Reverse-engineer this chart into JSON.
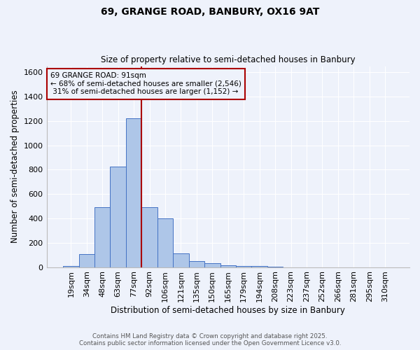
{
  "title_line1": "69, GRANGE ROAD, BANBURY, OX16 9AT",
  "title_line2": "Size of property relative to semi-detached houses in Banbury",
  "xlabel": "Distribution of semi-detached houses by size in Banbury",
  "ylabel": "Number of semi-detached properties",
  "categories": [
    "19sqm",
    "34sqm",
    "48sqm",
    "63sqm",
    "77sqm",
    "92sqm",
    "106sqm",
    "121sqm",
    "135sqm",
    "150sqm",
    "165sqm",
    "179sqm",
    "194sqm",
    "208sqm",
    "223sqm",
    "237sqm",
    "252sqm",
    "266sqm",
    "281sqm",
    "295sqm",
    "310sqm"
  ],
  "values": [
    10,
    105,
    490,
    825,
    1220,
    490,
    400,
    110,
    48,
    30,
    17,
    11,
    10,
    3,
    0,
    0,
    0,
    0,
    0,
    0,
    0
  ],
  "bar_color": "#aec6e8",
  "bar_edge_color": "#4472c4",
  "background_color": "#eef2fb",
  "grid_color": "#ffffff",
  "property_label": "69 GRANGE ROAD: 91sqm",
  "pct_smaller": 68,
  "count_smaller": 2546,
  "pct_larger": 31,
  "count_larger": 1152,
  "vline_color": "#aa0000",
  "vline_x": 4.5,
  "annotation_box_edgecolor": "#aa0000",
  "ylim": [
    0,
    1650
  ],
  "yticks": [
    0,
    200,
    400,
    600,
    800,
    1000,
    1200,
    1400,
    1600
  ],
  "footer_line1": "Contains HM Land Registry data © Crown copyright and database right 2025.",
  "footer_line2": "Contains public sector information licensed under the Open Government Licence v3.0."
}
